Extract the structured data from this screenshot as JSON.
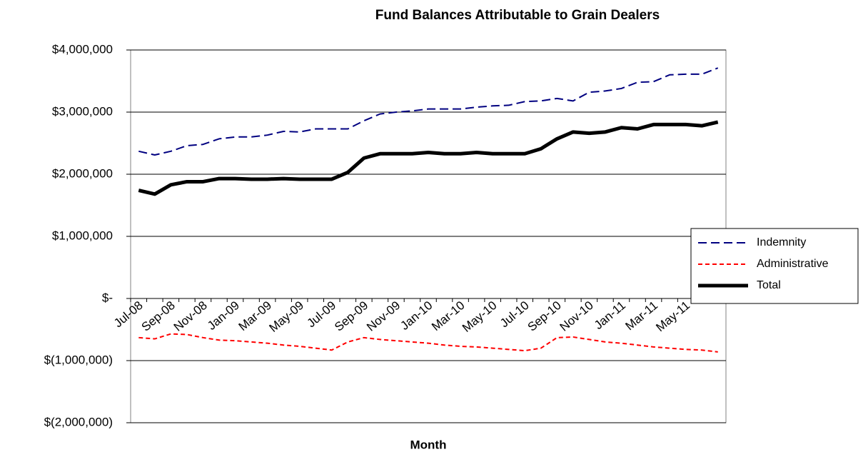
{
  "chart_data": {
    "type": "line",
    "title": "Fund Balances Attributable to Grain Dealers",
    "x_label": "Month",
    "categories": [
      "Jul-08",
      null,
      "Sep-08",
      null,
      "Nov-08",
      null,
      "Jan-09",
      null,
      "Mar-09",
      null,
      "May-09",
      null,
      "Jul-09",
      null,
      "Sep-09",
      null,
      "Nov-09",
      null,
      "Jan-10",
      null,
      "Mar-10",
      null,
      "May-10",
      null,
      "Jul-10",
      null,
      "Sep-10",
      null,
      "Nov-10",
      null,
      "Jan-11",
      null,
      "Mar-11",
      null,
      "May-11",
      null,
      null
    ],
    "series": [
      {
        "name": "Indemnity",
        "color": "#000080",
        "dash": "12 6",
        "width": 2,
        "values": [
          2370000,
          2310000,
          2370000,
          2460000,
          2480000,
          2570000,
          2600000,
          2600000,
          2630000,
          2690000,
          2680000,
          2730000,
          2730000,
          2730000,
          2860000,
          2970000,
          3000000,
          3020000,
          3050000,
          3050000,
          3050000,
          3080000,
          3100000,
          3110000,
          3170000,
          3180000,
          3220000,
          3180000,
          3320000,
          3340000,
          3380000,
          3480000,
          3490000,
          3600000,
          3610000,
          3610000,
          3710000
        ]
      },
      {
        "name": "Administrative",
        "color": "#ff0000",
        "dash": "6 4",
        "width": 2,
        "values": [
          -630000,
          -650000,
          -570000,
          -580000,
          -630000,
          -670000,
          -680000,
          -700000,
          -720000,
          -750000,
          -770000,
          -800000,
          -830000,
          -700000,
          -630000,
          -660000,
          -680000,
          -700000,
          -720000,
          -750000,
          -770000,
          -780000,
          -800000,
          -820000,
          -840000,
          -800000,
          -630000,
          -620000,
          -660000,
          -700000,
          -720000,
          -750000,
          -780000,
          -800000,
          -820000,
          -830000,
          -860000
        ]
      },
      {
        "name": "Total",
        "color": "#000000",
        "dash": "none",
        "width": 5,
        "values": [
          1740000,
          1680000,
          1830000,
          1880000,
          1880000,
          1930000,
          1930000,
          1920000,
          1920000,
          1930000,
          1920000,
          1920000,
          1920000,
          2030000,
          2260000,
          2330000,
          2330000,
          2330000,
          2350000,
          2330000,
          2330000,
          2350000,
          2330000,
          2330000,
          2330000,
          2410000,
          2570000,
          2680000,
          2660000,
          2680000,
          2750000,
          2730000,
          2800000,
          2800000,
          2800000,
          2780000,
          2840000
        ]
      }
    ],
    "ylim": [
      -2000000,
      4000000
    ],
    "yticks": [
      {
        "value": -2000000,
        "label": "$(2,000,000)"
      },
      {
        "value": -1000000,
        "label": "$(1,000,000)"
      },
      {
        "value": 0,
        "label": "$-"
      },
      {
        "value": 1000000,
        "label": "$1,000,000"
      },
      {
        "value": 2000000,
        "label": "$2,000,000"
      },
      {
        "value": 3000000,
        "label": "$3,000,000"
      },
      {
        "value": 4000000,
        "label": "$4,000,000"
      }
    ],
    "grid": true,
    "legend": "right"
  }
}
